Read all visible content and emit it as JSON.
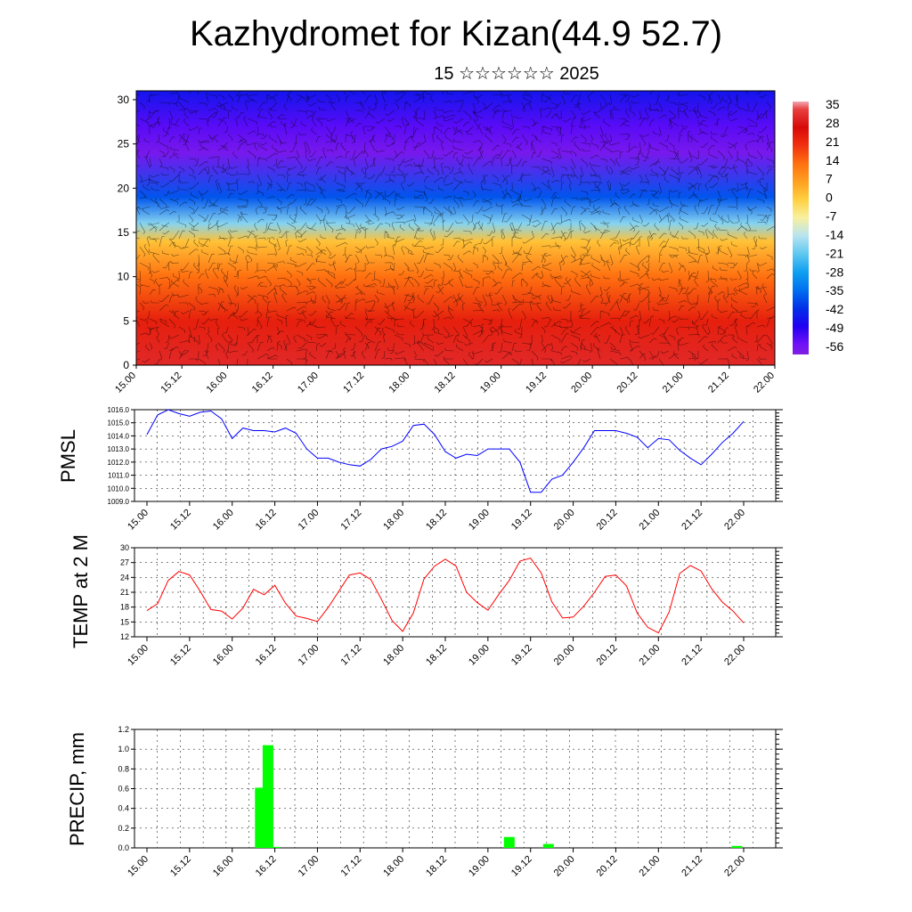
{
  "header": {
    "title": "Kazhydromet for Kizan(44.9 52.7)",
    "subtitle": "15 ☆☆☆☆☆☆ 2025"
  },
  "x_tick_labels": [
    "15.00",
    "15.12",
    "16.00",
    "16.12",
    "17.00",
    "17.12",
    "18.00",
    "18.12",
    "19.00",
    "19.12",
    "20.00",
    "20.12",
    "21.00",
    "21.12",
    "22.00"
  ],
  "colors": {
    "pmsl_line": "#0000ff",
    "temp_line": "#ff0000",
    "precip_bar": "#00ff00"
  },
  "chart_data": [
    {
      "type": "heatmap",
      "title": "",
      "xlabel": "",
      "ylabel": "",
      "x": [
        "15.00",
        "15.12",
        "16.00",
        "16.12",
        "17.00",
        "17.12",
        "18.00",
        "18.12",
        "19.00",
        "19.12",
        "20.00",
        "20.12",
        "21.00",
        "21.12",
        "22.00"
      ],
      "ylim": [
        0,
        31
      ],
      "yticks": [
        0,
        5,
        10,
        15,
        20,
        25,
        30
      ],
      "colorbar": {
        "labels": [
          "35",
          "28",
          "21",
          "14",
          "7",
          "0",
          "-7",
          "-14",
          "-21",
          "-28",
          "-35",
          "-42",
          "-49",
          "-56"
        ],
        "range": [
          -60,
          38
        ]
      },
      "temperature_profile": [
        {
          "level": 0,
          "value": 32
        },
        {
          "level": 5,
          "value": 24
        },
        {
          "level": 10,
          "value": 14
        },
        {
          "level": 14,
          "value": 2
        },
        {
          "level": 16,
          "value": -18
        },
        {
          "level": 19,
          "value": -38
        },
        {
          "level": 24,
          "value": -58
        },
        {
          "level": 27,
          "value": -54
        },
        {
          "level": 31,
          "value": -46
        }
      ],
      "overlay": "wind barbs"
    },
    {
      "type": "line",
      "ylabel": "PMSL",
      "ylim": [
        1009.0,
        1016.0
      ],
      "yticks": [
        "1009.0",
        "1010.0",
        "1011.0",
        "1012.0",
        "1013.0",
        "1014.0",
        "1015.0",
        "1016.0"
      ],
      "grid": true,
      "x_start": 15.0,
      "x_step_days": 0.125,
      "values": [
        1014.1,
        1015.6,
        1016.0,
        1015.7,
        1015.5,
        1015.8,
        1015.9,
        1015.3,
        1013.8,
        1014.6,
        1014.4,
        1014.4,
        1014.3,
        1014.6,
        1014.2,
        1013.0,
        1012.3,
        1012.3,
        1012.0,
        1011.8,
        1011.7,
        1012.2,
        1013.0,
        1013.2,
        1013.6,
        1014.8,
        1014.9,
        1014.1,
        1012.8,
        1012.3,
        1012.6,
        1012.5,
        1013.0,
        1013.0,
        1013.0,
        1012.0,
        1009.7,
        1009.7,
        1010.7,
        1011.0,
        1012.0,
        1013.1,
        1014.4,
        1014.4,
        1014.4,
        1014.2,
        1013.9,
        1013.1,
        1013.8,
        1013.7,
        1012.9,
        1012.3,
        1011.8,
        1012.6,
        1013.5,
        1014.2,
        1015.1
      ]
    },
    {
      "type": "line",
      "ylabel": "TEMP at 2 M",
      "ylim": [
        12,
        30
      ],
      "yticks": [
        "12",
        "15",
        "18",
        "21",
        "24",
        "27",
        "30"
      ],
      "grid": true,
      "x_start": 15.0,
      "x_step_days": 0.125,
      "values": [
        17.3,
        18.7,
        23.4,
        25.2,
        24.5,
        21.2,
        17.5,
        17.2,
        15.6,
        17.8,
        21.6,
        20.5,
        22.4,
        18.8,
        16.2,
        15.7,
        15.1,
        17.9,
        21.2,
        24.5,
        24.9,
        23.6,
        19.6,
        15.3,
        13.1,
        16.8,
        23.7,
        26.3,
        27.7,
        26.3,
        21.0,
        18.9,
        17.4,
        20.5,
        23.4,
        27.3,
        27.9,
        24.9,
        19.1,
        15.8,
        16.0,
        18.2,
        21.0,
        24.2,
        24.5,
        22.3,
        16.8,
        13.9,
        12.8,
        17.0,
        24.8,
        26.4,
        25.3,
        21.7,
        19.0,
        17.2,
        14.8
      ]
    },
    {
      "type": "bar",
      "ylabel": "PRECIP, mm",
      "ylim": [
        0.0,
        1.2
      ],
      "yticks": [
        "0.0",
        "0.2",
        "0.4",
        "0.6",
        "0.8",
        "1.0",
        "1.2"
      ],
      "grid": true,
      "bars": [
        {
          "x": 16.33,
          "value": 0.61
        },
        {
          "x": 16.42,
          "value": 1.04
        },
        {
          "x": 16.5,
          "value": 0.01
        },
        {
          "x": 19.25,
          "value": 0.11
        },
        {
          "x": 19.71,
          "value": 0.04
        },
        {
          "x": 21.92,
          "value": 0.02
        }
      ]
    }
  ]
}
